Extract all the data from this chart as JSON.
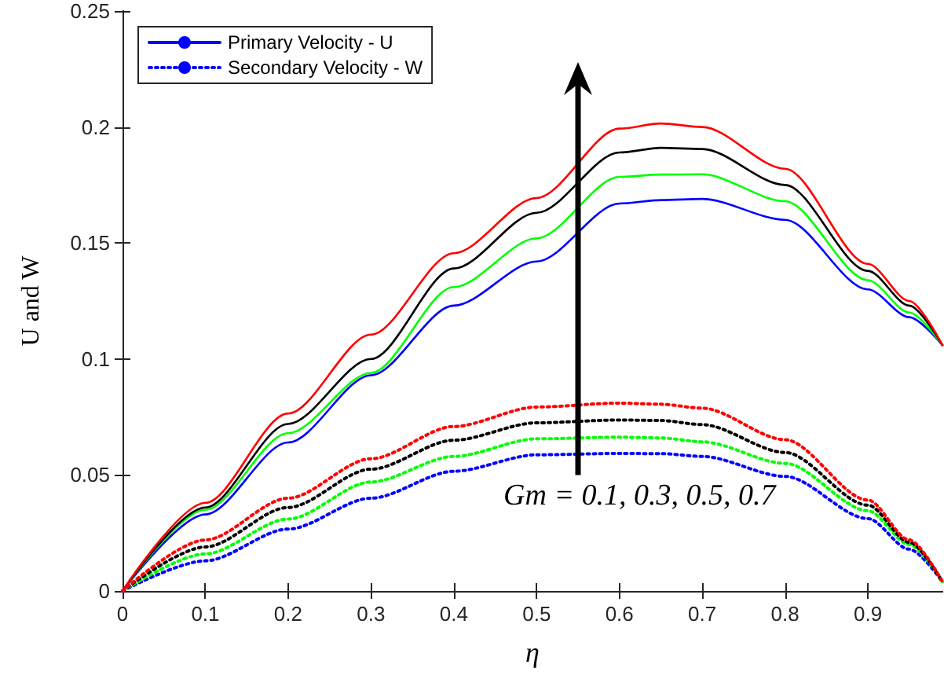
{
  "chart_data": {
    "type": "line",
    "xlabel": "η",
    "ylabel": "U and W",
    "x": [
      0,
      0.1,
      0.2,
      0.3,
      0.4,
      0.5,
      0.6,
      0.65,
      0.7,
      0.8,
      0.9,
      0.95,
      0.99
    ],
    "series": [
      {
        "name": "Primary Velocity - U",
        "color": "#0000ff",
        "line_style": "solid",
        "values": [
          0,
          0.033,
          0.064,
          0.093,
          0.123,
          0.142,
          0.167,
          0.1685,
          0.169,
          0.16,
          0.13,
          0.118,
          0.106
        ]
      },
      {
        "color": "#00ff00",
        "line_style": "solid",
        "values": [
          0,
          0.035,
          0.068,
          0.094,
          0.131,
          0.152,
          0.1785,
          0.1795,
          0.1796,
          0.168,
          0.134,
          0.12,
          0.106
        ]
      },
      {
        "color": "#000000",
        "line_style": "solid",
        "values": [
          0,
          0.036,
          0.072,
          0.1,
          0.139,
          0.163,
          0.189,
          0.191,
          0.1905,
          0.175,
          0.138,
          0.123,
          0.106
        ]
      },
      {
        "color": "#ff0000",
        "line_style": "solid",
        "values": [
          0,
          0.038,
          0.0765,
          0.1105,
          0.1456,
          0.1694,
          0.1993,
          0.2015,
          0.2,
          0.182,
          0.141,
          0.125,
          0.106
        ]
      },
      {
        "name": "Secondary Velocity - W",
        "color": "#0000ff",
        "line_style": "dotted",
        "values": [
          0,
          0.013,
          0.0267,
          0.04,
          0.0516,
          0.0587,
          0.0593,
          0.0592,
          0.058,
          0.0494,
          0.0312,
          0.018,
          0.004
        ]
      },
      {
        "color": "#00ff00",
        "line_style": "dotted",
        "values": [
          0,
          0.016,
          0.031,
          0.047,
          0.058,
          0.0656,
          0.0663,
          0.066,
          0.0643,
          0.055,
          0.0346,
          0.02,
          0.004
        ]
      },
      {
        "color": "#000000",
        "line_style": "dotted",
        "values": [
          0,
          0.019,
          0.036,
          0.0525,
          0.065,
          0.0725,
          0.0737,
          0.0735,
          0.0717,
          0.0597,
          0.037,
          0.021,
          0.004
        ]
      },
      {
        "color": "#ff0000",
        "line_style": "dotted",
        "values": [
          0,
          0.022,
          0.04,
          0.057,
          0.0709,
          0.0793,
          0.081,
          0.0805,
          0.0788,
          0.0652,
          0.0392,
          0.022,
          0.004
        ]
      }
    ],
    "xlim": [
      0,
      0.99
    ],
    "xticks": [
      0,
      0.1,
      0.2,
      0.3,
      0.4,
      0.5,
      0.6,
      0.7,
      0.8,
      0.9
    ],
    "ylim": [
      0,
      0.25
    ],
    "yticks": [
      0,
      0.05,
      0.1,
      0.15,
      0.2,
      0.25
    ],
    "grid": false,
    "legend": "top left",
    "marker": "none",
    "annotations": [
      "Gm = 0.1, 0.3, 0.5, 0.7"
    ]
  }
}
